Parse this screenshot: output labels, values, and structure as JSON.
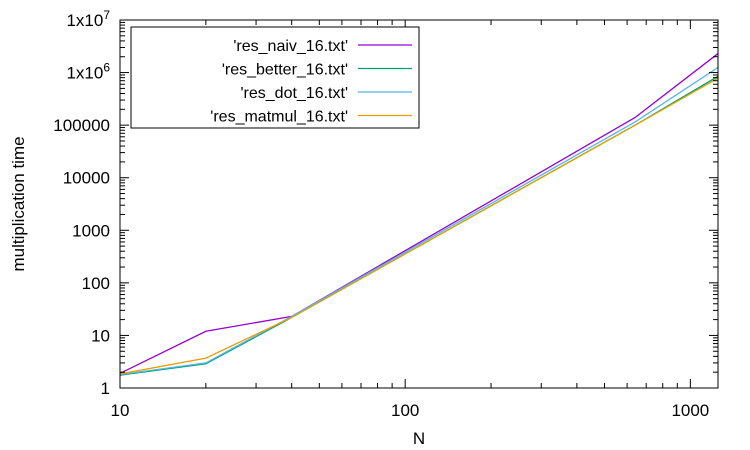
{
  "chart_data": {
    "type": "line",
    "title": "",
    "xlabel": "N",
    "ylabel": "multiplication time",
    "xscale": "log",
    "yscale": "log",
    "xlim": [
      10,
      1250
    ],
    "ylim": [
      1,
      10000000
    ],
    "x_ticks": [
      {
        "value": 10,
        "label": "10"
      },
      {
        "value": 100,
        "label": "100"
      },
      {
        "value": 1000,
        "label": "1000"
      }
    ],
    "y_ticks": [
      {
        "value": 1,
        "label": "1",
        "sup": ""
      },
      {
        "value": 10,
        "label": "10",
        "sup": ""
      },
      {
        "value": 100,
        "label": "100",
        "sup": ""
      },
      {
        "value": 1000,
        "label": "1000",
        "sup": ""
      },
      {
        "value": 10000,
        "label": "10000",
        "sup": ""
      },
      {
        "value": 100000,
        "label": "100000",
        "sup": ""
      },
      {
        "value": 1000000,
        "label": "1x10",
        "sup": "6"
      },
      {
        "value": 10000000,
        "label": "1x10",
        "sup": "7"
      }
    ],
    "grid": false,
    "legend_position": "top-left",
    "series": [
      {
        "name": "'res_naiv_16.txt'",
        "color": "#9400d3",
        "x": [
          10,
          20,
          40,
          640,
          1250
        ],
        "y": [
          1.9,
          12,
          23,
          140000,
          2300000
        ]
      },
      {
        "name": "'res_better_16.txt'",
        "color": "#009e73",
        "x": [
          10,
          20,
          40,
          640,
          1250
        ],
        "y": [
          1.75,
          2.9,
          22,
          100000,
          850000
        ]
      },
      {
        "name": "'res_dot_16.txt'",
        "color": "#56b4e9",
        "x": [
          10,
          20,
          40,
          640,
          1250
        ],
        "y": [
          1.8,
          3.0,
          23,
          115000,
          1250000
        ]
      },
      {
        "name": "'res_matmul_16.txt'",
        "color": "#e69f00",
        "x": [
          10,
          20,
          40,
          640,
          1250
        ],
        "y": [
          1.85,
          3.7,
          22,
          100000,
          780000
        ]
      }
    ]
  }
}
